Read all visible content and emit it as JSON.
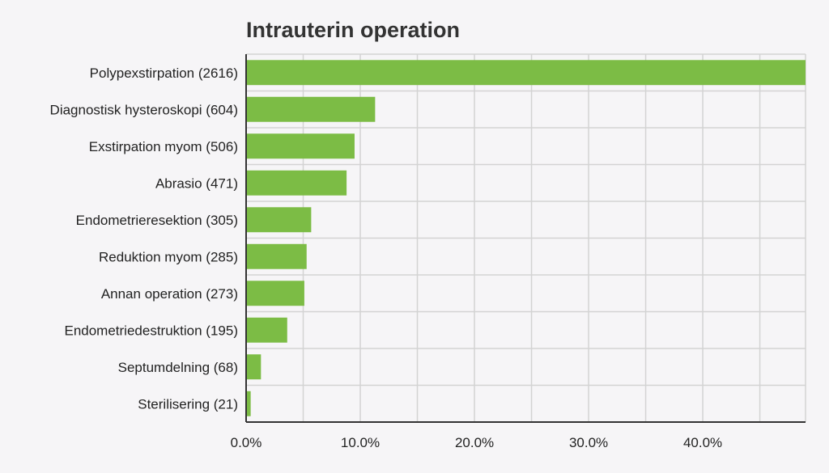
{
  "chart_data": {
    "type": "bar",
    "orientation": "horizontal",
    "title": "Intrauterin operation",
    "xlabel": "",
    "ylabel": "",
    "categories": [
      "Polypexstirpation (2616)",
      "Diagnostisk hysteroskopi (604)",
      "Exstirpation myom (506)",
      "Abrasio (471)",
      "Endometrieresektion (305)",
      "Reduktion myom (285)",
      "Annan operation (273)",
      "Endometriedestruktion (195)",
      "Septumdelning (68)",
      "Sterilisering (21)"
    ],
    "values": [
      49.0,
      11.3,
      9.5,
      8.8,
      5.7,
      5.3,
      5.1,
      3.6,
      1.3,
      0.4
    ],
    "value_unit": "%",
    "xlim": [
      0,
      49
    ],
    "xticks": [
      0,
      10,
      20,
      30,
      40
    ],
    "xtick_labels": [
      "0.0%",
      "10.0%",
      "20.0%",
      "30.0%",
      "40.0%"
    ],
    "grid": true,
    "legend": "none",
    "bar_color": "#7cbc45",
    "gridline_color": "#d3d3d3",
    "axis_color": "#333333"
  }
}
